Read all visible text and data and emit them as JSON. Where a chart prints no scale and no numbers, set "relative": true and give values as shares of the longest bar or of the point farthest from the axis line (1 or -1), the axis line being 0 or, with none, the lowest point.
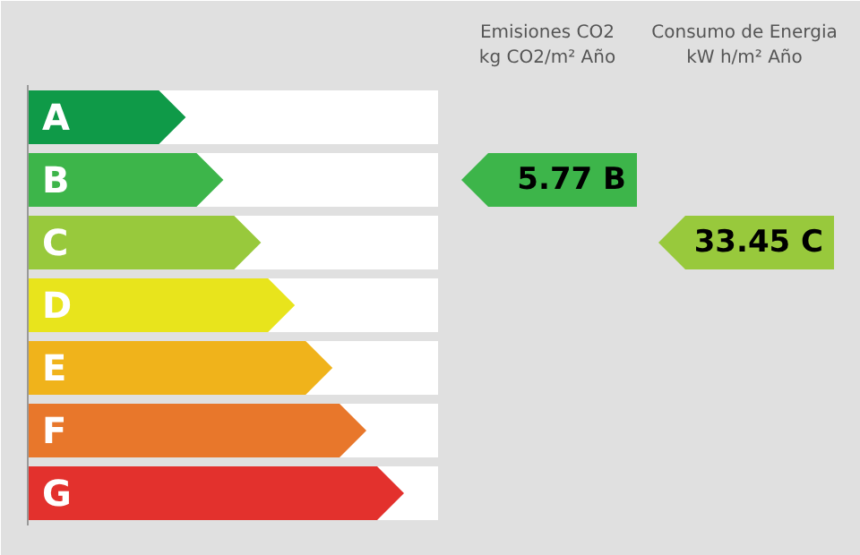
{
  "chart_data": {
    "type": "bar",
    "orientation": "horizontal",
    "relative": true,
    "categories": [
      "A",
      "B",
      "C",
      "D",
      "E",
      "F",
      "G"
    ],
    "values": [
      0.42,
      0.52,
      0.62,
      0.71,
      0.81,
      0.9,
      1.0
    ],
    "colors": [
      "#0f9a48",
      "#3db54a",
      "#98c93c",
      "#e8e41c",
      "#f0b31b",
      "#e8772b",
      "#e3312d"
    ],
    "annotations": [
      "Emisiones CO2\nkg CO2/m² Año",
      "Consumo de Energia\nkW h/m² Año",
      "5.77 B",
      "33.45 C"
    ]
  }
}
